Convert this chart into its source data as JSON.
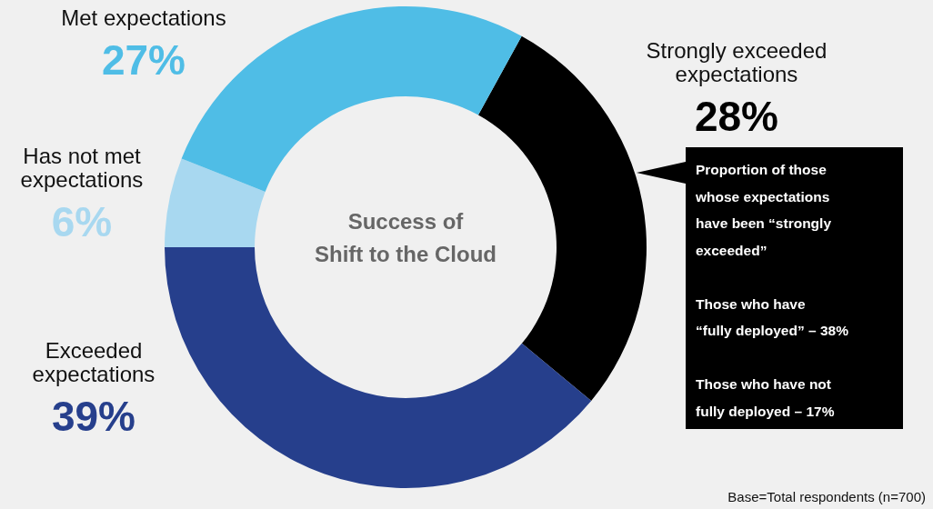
{
  "chart_data": {
    "type": "donut",
    "title": "Success of\nShift to the Cloud",
    "categories": [
      "Strongly exceeded expectations",
      "Exceeded expectations",
      "Has not met expectations",
      "Met expectations"
    ],
    "values": [
      28,
      39,
      6,
      27
    ],
    "value_labels": [
      "28%",
      "39%",
      "6%",
      "27%"
    ],
    "colors": [
      "#000000",
      "#263f8c",
      "#a8d8f0",
      "#4fbde6"
    ],
    "legend": false,
    "annotations": [
      "Proportion of those\nwhose expectations\nhave been “strongly\nexceeded”",
      "Those who have\n“fully deployed”  – 38%",
      "Those who have not\nfully deployed – 17%",
      "Base=Total respondents (n=700)"
    ]
  }
}
